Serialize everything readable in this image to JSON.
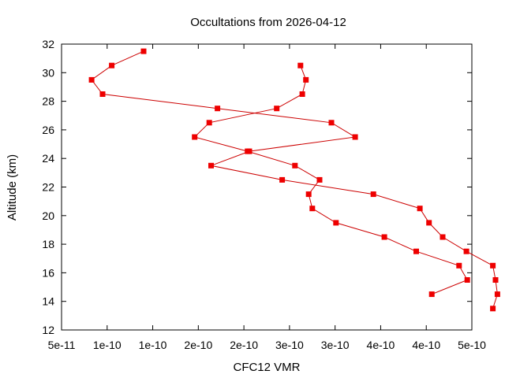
{
  "chart_data": {
    "type": "line",
    "title": "Occultations from 2026-04-12",
    "xlabel": "CFC12 VMR",
    "ylabel": "Altitude (km)",
    "xlim": [
      5e-11,
      5e-10
    ],
    "ylim": [
      12,
      32
    ],
    "x_ticks": [
      {
        "value": 5e-11,
        "label": "5e-11"
      },
      {
        "value": 1e-10,
        "label": "1e-10"
      },
      {
        "value": 1.5e-10,
        "label": "1e-10"
      },
      {
        "value": 2e-10,
        "label": "2e-10"
      },
      {
        "value": 2.5e-10,
        "label": "2e-10"
      },
      {
        "value": 3e-10,
        "label": "3e-10"
      },
      {
        "value": 3.5e-10,
        "label": "3e-10"
      },
      {
        "value": 4e-10,
        "label": "4e-10"
      },
      {
        "value": 4.5e-10,
        "label": "4e-10"
      },
      {
        "value": 5e-10,
        "label": "5e-10"
      }
    ],
    "y_ticks": [
      12,
      14,
      16,
      18,
      20,
      22,
      24,
      26,
      28,
      30,
      32
    ],
    "grid": false,
    "legend": "none",
    "line_color": "#cc0000",
    "marker_color": "#ee0000",
    "marker": "square",
    "series": [
      {
        "points": [
          {
            "x": 1.4e-10,
            "y": 31.5
          },
          {
            "x": 1.05e-10,
            "y": 30.5
          },
          {
            "x": 8.3e-11,
            "y": 29.5
          },
          {
            "x": 9.5e-11,
            "y": 28.5
          },
          {
            "x": 2.21e-10,
            "y": 27.5
          },
          {
            "x": 3.46e-10,
            "y": 26.5
          },
          {
            "x": 3.72e-10,
            "y": 25.5
          },
          {
            "x": 2.56e-10,
            "y": 24.5
          },
          {
            "x": 2.14e-10,
            "y": 23.5
          },
          {
            "x": 2.92e-10,
            "y": 22.5
          },
          {
            "x": 3.92e-10,
            "y": 21.5
          },
          {
            "x": 4.43e-10,
            "y": 20.5
          },
          {
            "x": 4.53e-10,
            "y": 19.5
          },
          {
            "x": 4.68e-10,
            "y": 18.5
          },
          {
            "x": 4.94e-10,
            "y": 17.5
          },
          {
            "x": 5.23e-10,
            "y": 16.5
          },
          {
            "x": 5.26e-10,
            "y": 15.5
          },
          {
            "x": 5.28e-10,
            "y": 14.5
          },
          {
            "x": 5.23e-10,
            "y": 13.5
          }
        ]
      },
      {
        "points": [
          {
            "x": 3.12e-10,
            "y": 30.5
          },
          {
            "x": 3.18e-10,
            "y": 29.5
          },
          {
            "x": 3.14e-10,
            "y": 28.5
          },
          {
            "x": 2.86e-10,
            "y": 27.5
          },
          {
            "x": 2.12e-10,
            "y": 26.5
          },
          {
            "x": 1.96e-10,
            "y": 25.5
          },
          {
            "x": 2.54e-10,
            "y": 24.5
          },
          {
            "x": 3.06e-10,
            "y": 23.5
          },
          {
            "x": 3.33e-10,
            "y": 22.5
          },
          {
            "x": 3.21e-10,
            "y": 21.5
          },
          {
            "x": 3.25e-10,
            "y": 20.5
          },
          {
            "x": 3.51e-10,
            "y": 19.5
          },
          {
            "x": 4.04e-10,
            "y": 18.5
          },
          {
            "x": 4.39e-10,
            "y": 17.5
          },
          {
            "x": 4.86e-10,
            "y": 16.5
          },
          {
            "x": 4.95e-10,
            "y": 15.5
          },
          {
            "x": 4.56e-10,
            "y": 14.5
          }
        ]
      }
    ]
  }
}
